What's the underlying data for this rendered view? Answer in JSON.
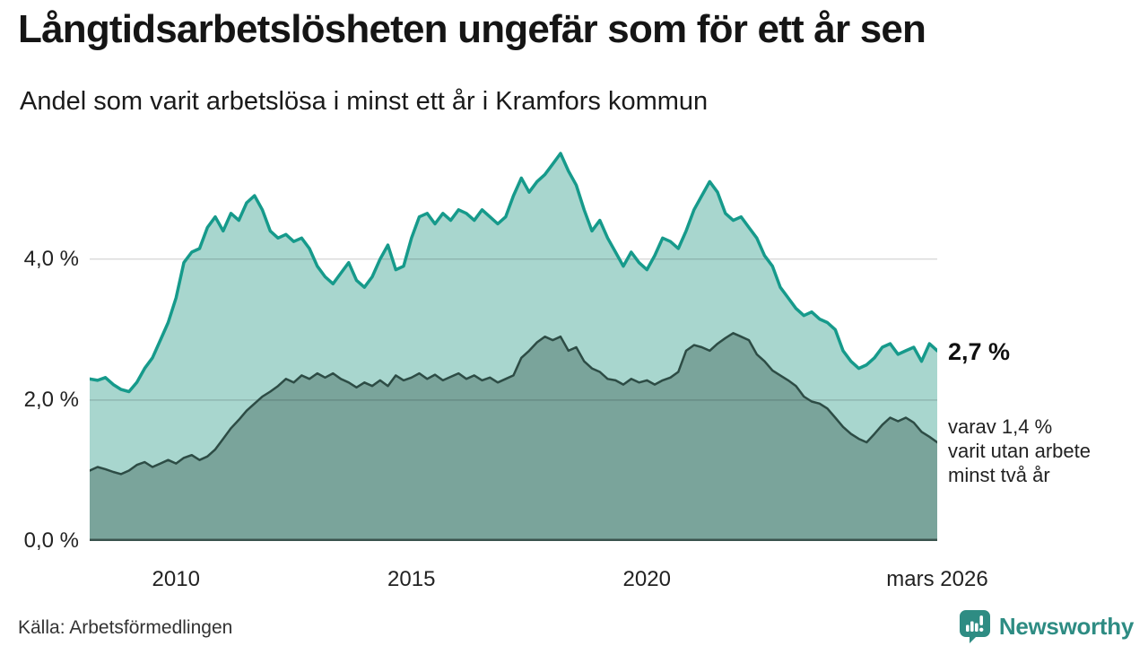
{
  "header": {
    "title": "Långtidsarbetslösheten ungefär som för ett år sen",
    "subtitle": "Andel som varit arbetslösa i minst ett år i Kramfors kommun"
  },
  "chart_data": {
    "type": "area",
    "title": "Långtidsarbetslösheten ungefär som för ett år sen",
    "subtitle": "Andel som varit arbetslösa i minst ett år i Kramfors kommun",
    "x_unit": "decimal year, samples every 2 months from mars 2008 to mars 2026",
    "x_start": 2008.1667,
    "x_end": 2026.1667,
    "x_step_years": 0.1667,
    "ylim": [
      0,
      5.64
    ],
    "ylabel": "",
    "xlabel": "",
    "grid": "horizontal",
    "legend": "none",
    "gridline_color": "rgba(0,0,0,0.14)",
    "baseline_color": "#3a534d",
    "yticks": [
      {
        "value": 4,
        "label": "4,0 %"
      },
      {
        "value": 2,
        "label": "2,0 %"
      },
      {
        "value": 0,
        "label": "0,0 %"
      }
    ],
    "xticks": [
      {
        "value": 2010,
        "label": "2010"
      },
      {
        "value": 2015,
        "label": "2015"
      },
      {
        "value": 2020,
        "label": "2020"
      },
      {
        "value": 2026.1667,
        "label": "mars 2026"
      }
    ],
    "series": [
      {
        "name": "Andel arbetslösa minst ett år",
        "latest_value": 2.7,
        "line_color": "#169a8b",
        "fill_color": "#a8d6ce",
        "line_width": 3.5,
        "values": [
          2.3,
          2.28,
          2.32,
          2.22,
          2.15,
          2.12,
          2.25,
          2.45,
          2.6,
          2.85,
          3.1,
          3.45,
          3.95,
          4.1,
          4.15,
          4.45,
          4.6,
          4.4,
          4.65,
          4.55,
          4.8,
          4.9,
          4.7,
          4.4,
          4.3,
          4.35,
          4.25,
          4.3,
          4.15,
          3.9,
          3.75,
          3.65,
          3.8,
          3.95,
          3.7,
          3.6,
          3.75,
          4.0,
          4.2,
          3.85,
          3.9,
          4.3,
          4.6,
          4.65,
          4.5,
          4.65,
          4.55,
          4.7,
          4.65,
          4.55,
          4.7,
          4.6,
          4.5,
          4.6,
          4.9,
          5.15,
          4.95,
          5.1,
          5.2,
          5.35,
          5.5,
          5.25,
          5.05,
          4.7,
          4.4,
          4.55,
          4.3,
          4.1,
          3.9,
          4.1,
          3.95,
          3.85,
          4.05,
          4.3,
          4.25,
          4.15,
          4.4,
          4.7,
          4.9,
          5.1,
          4.95,
          4.65,
          4.55,
          4.6,
          4.45,
          4.3,
          4.05,
          3.9,
          3.6,
          3.45,
          3.3,
          3.2,
          3.25,
          3.15,
          3.1,
          3.0,
          2.7,
          2.55,
          2.45,
          2.5,
          2.6,
          2.75,
          2.8,
          2.65,
          2.7,
          2.75,
          2.55,
          2.8,
          2.7
        ]
      },
      {
        "name": "Andel arbetslösa minst två år",
        "latest_value": 1.4,
        "line_color": "#2d4c45",
        "fill_color": "#7aa49b",
        "line_width": 2.5,
        "values": [
          1.0,
          1.05,
          1.02,
          0.98,
          0.95,
          1.0,
          1.08,
          1.12,
          1.05,
          1.1,
          1.15,
          1.1,
          1.18,
          1.22,
          1.15,
          1.2,
          1.3,
          1.45,
          1.6,
          1.72,
          1.85,
          1.95,
          2.05,
          2.12,
          2.2,
          2.3,
          2.25,
          2.35,
          2.3,
          2.38,
          2.32,
          2.38,
          2.3,
          2.25,
          2.18,
          2.25,
          2.2,
          2.28,
          2.2,
          2.35,
          2.28,
          2.32,
          2.38,
          2.3,
          2.36,
          2.28,
          2.33,
          2.38,
          2.3,
          2.35,
          2.28,
          2.32,
          2.25,
          2.3,
          2.35,
          2.6,
          2.7,
          2.82,
          2.9,
          2.85,
          2.9,
          2.7,
          2.75,
          2.55,
          2.45,
          2.4,
          2.3,
          2.28,
          2.22,
          2.3,
          2.25,
          2.28,
          2.22,
          2.28,
          2.32,
          2.4,
          2.7,
          2.78,
          2.75,
          2.7,
          2.8,
          2.88,
          2.95,
          2.9,
          2.85,
          2.65,
          2.55,
          2.42,
          2.35,
          2.28,
          2.2,
          2.05,
          1.98,
          1.95,
          1.88,
          1.75,
          1.62,
          1.52,
          1.45,
          1.4,
          1.52,
          1.65,
          1.75,
          1.7,
          1.75,
          1.68,
          1.55,
          1.48,
          1.4
        ]
      }
    ],
    "annotations": {
      "latest_value": "2,7 %",
      "secondary_lines": [
        "varav 1,4 %",
        "varit utan arbete",
        "minst två år"
      ]
    }
  },
  "footer": {
    "source": "Källa: Arbetsförmedlingen",
    "brand": "Newsworthy"
  }
}
